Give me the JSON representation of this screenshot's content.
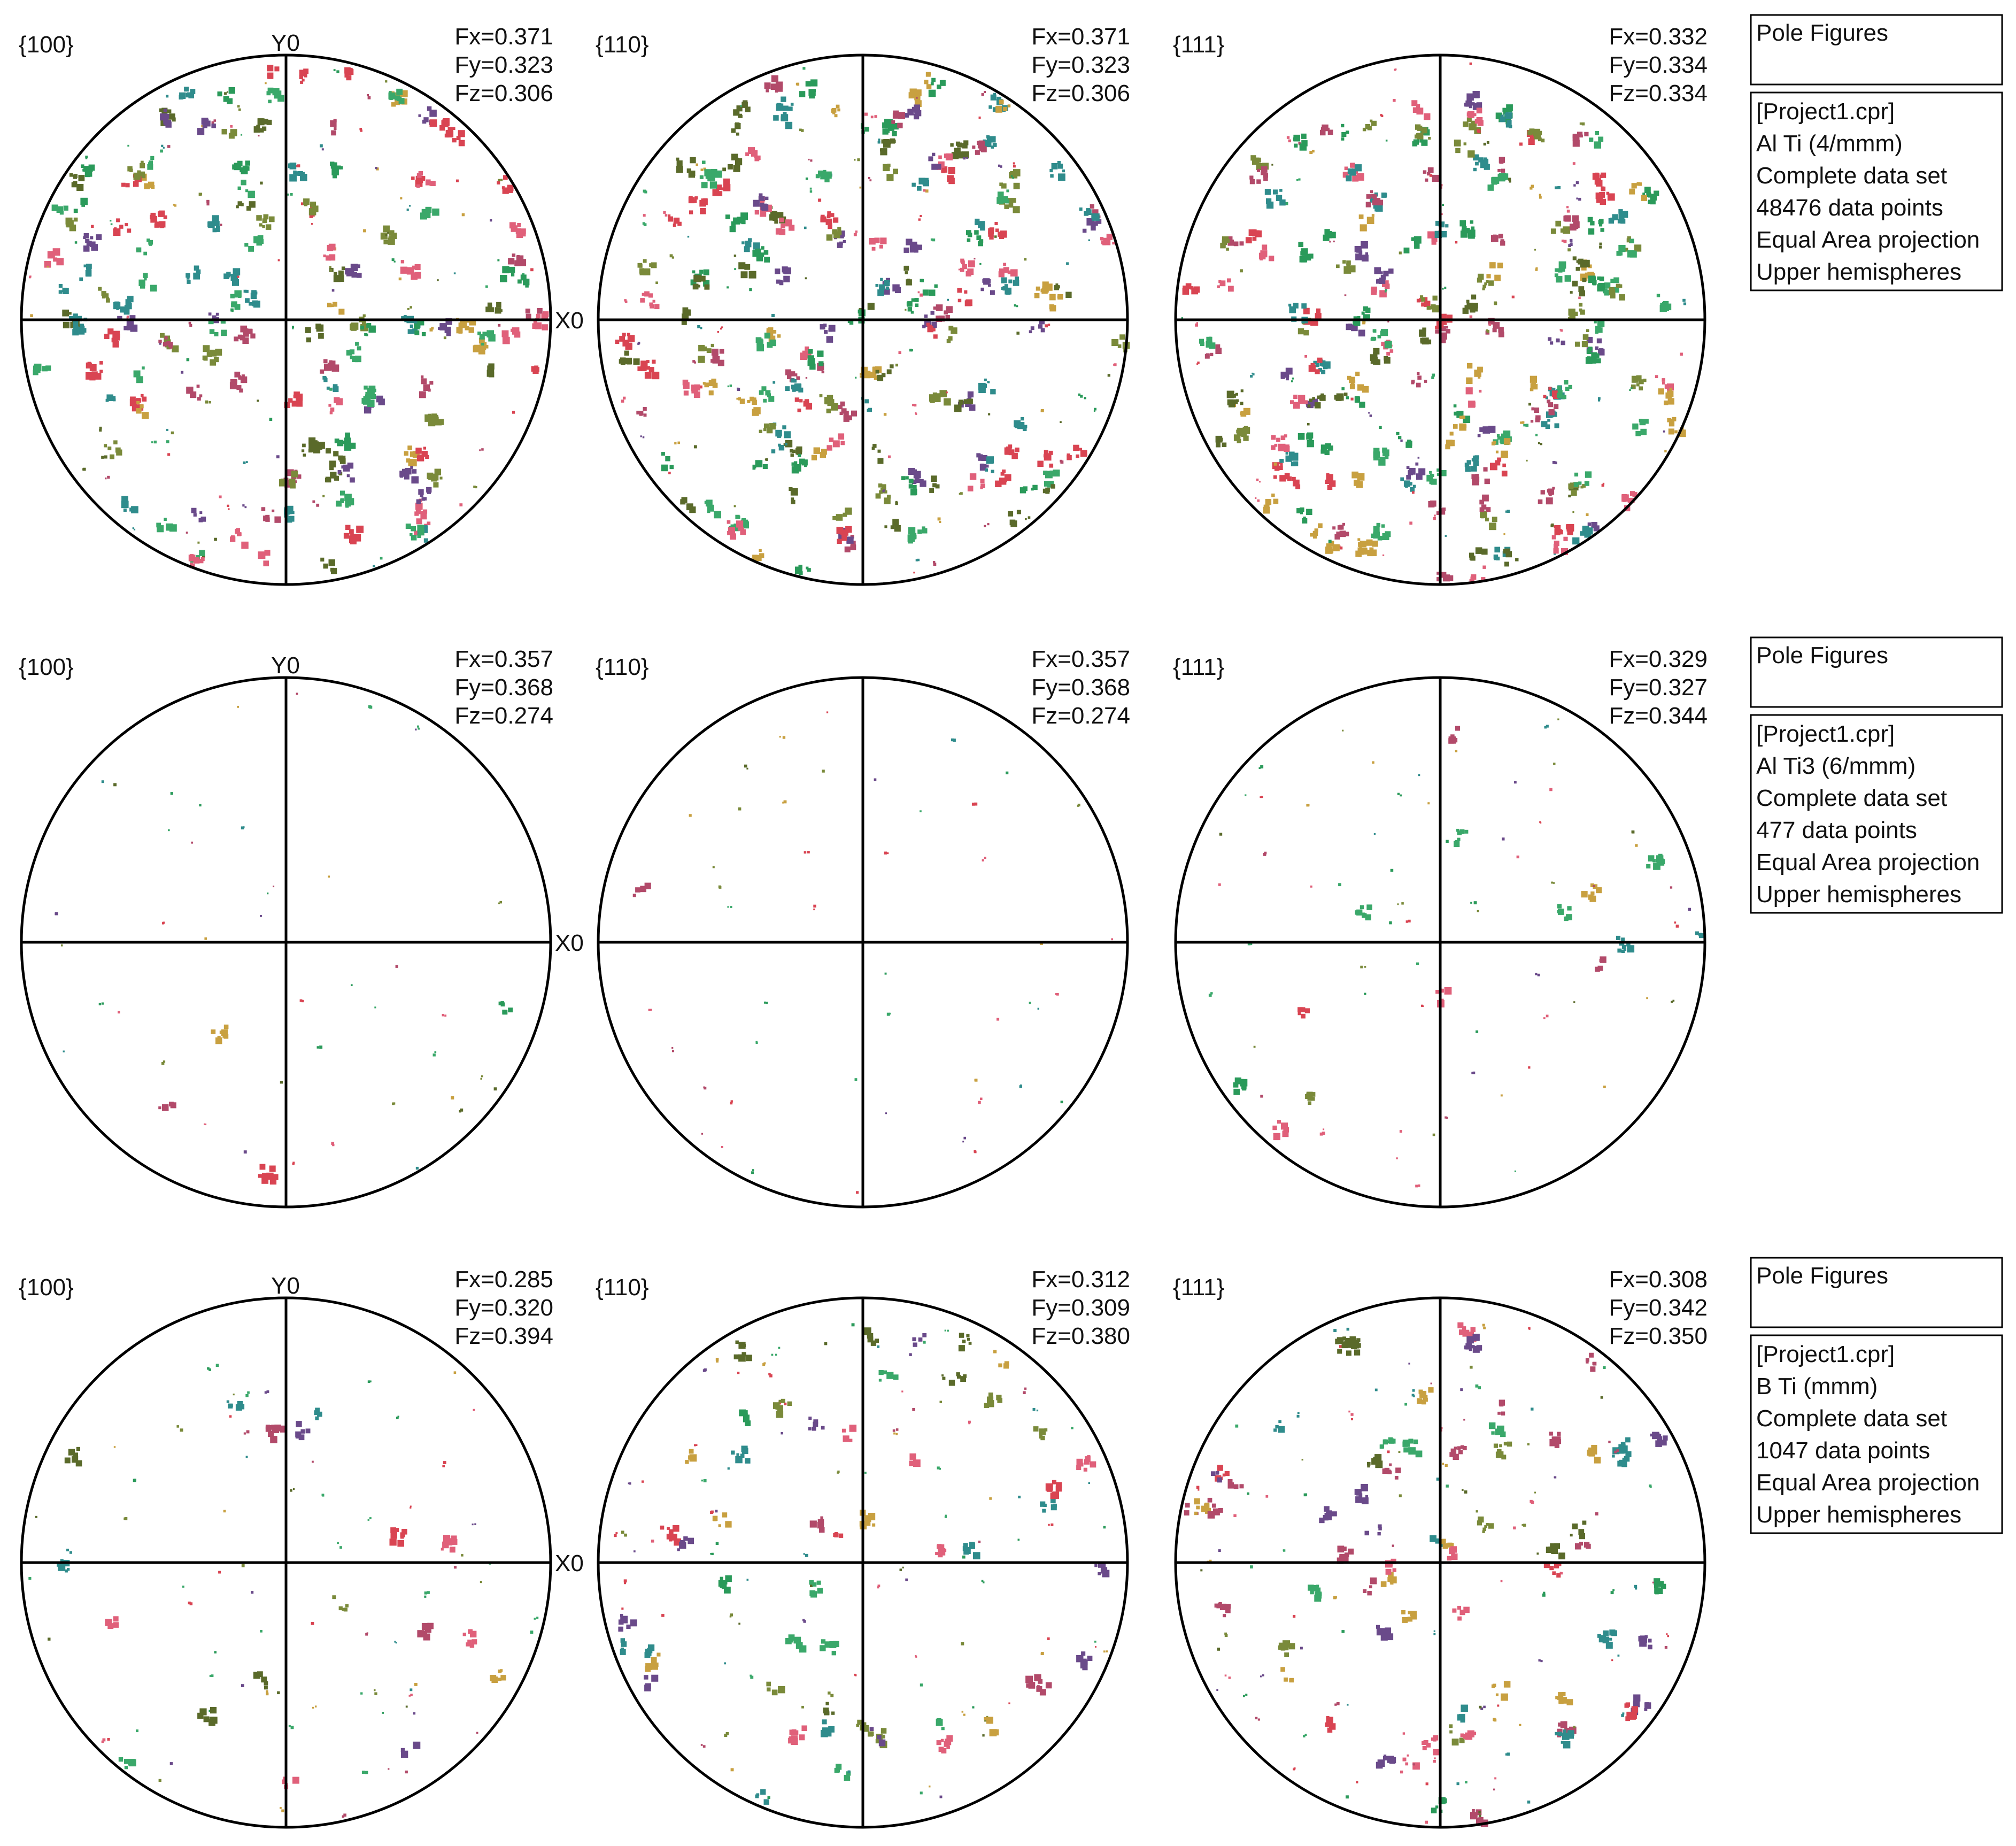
{
  "title": "Pole Figures",
  "axis_labels": {
    "y": "Y0",
    "x": "X0"
  },
  "colors": {
    "outline": "#000000",
    "background": "#ffffff",
    "palette": [
      "#d94452",
      "#3aa86a",
      "#7a8a3a",
      "#6a4a8a",
      "#c8a040",
      "#2f8c8c",
      "#b24a6a",
      "#5a6a2a",
      "#e0607a",
      "#2a9a5a"
    ]
  },
  "rows": [
    {
      "info_box": {
        "header": "Pole Figures",
        "lines": [
          "[Project1.cpr]",
          "Al Ti (4/mmm)",
          "Complete data set",
          "48476 data points",
          "Equal Area projection",
          "Upper hemispheres"
        ]
      },
      "figures": [
        {
          "plane": "{100}",
          "fx": "Fx=0.371",
          "fy": "Fy=0.323",
          "fz": "Fz=0.306"
        },
        {
          "plane": "{110}",
          "fx": "Fx=0.371",
          "fy": "Fy=0.323",
          "fz": "Fz=0.306"
        },
        {
          "plane": "{111}",
          "fx": "Fx=0.332",
          "fy": "Fy=0.334",
          "fz": "Fz=0.334"
        }
      ]
    },
    {
      "info_box": {
        "header": "Pole Figures",
        "lines": [
          "[Project1.cpr]",
          "Al Ti3 (6/mmm)",
          "Complete data set",
          "477 data points",
          "Equal Area projection",
          "Upper hemispheres"
        ]
      },
      "figures": [
        {
          "plane": "{100}",
          "fx": "Fx=0.357",
          "fy": "Fy=0.368",
          "fz": "Fz=0.274"
        },
        {
          "plane": "{110}",
          "fx": "Fx=0.357",
          "fy": "Fy=0.368",
          "fz": "Fz=0.274"
        },
        {
          "plane": "{111}",
          "fx": "Fx=0.329",
          "fy": "Fy=0.327",
          "fz": "Fz=0.344"
        }
      ]
    },
    {
      "info_box": {
        "header": "Pole Figures",
        "lines": [
          "[Project1.cpr]",
          "B Ti (mmm)",
          "Complete data set",
          "1047 data points",
          "Equal Area projection",
          "Upper hemispheres"
        ]
      },
      "figures": [
        {
          "plane": "{100}",
          "fx": "Fx=0.285",
          "fy": "Fy=0.320",
          "fz": "Fz=0.394"
        },
        {
          "plane": "{110}",
          "fx": "Fx=0.312",
          "fy": "Fy=0.309",
          "fz": "Fz=0.380"
        },
        {
          "plane": "{111}",
          "fx": "Fx=0.308",
          "fy": "Fy=0.342",
          "fz": "Fz=0.350"
        }
      ]
    }
  ],
  "chart_data": {
    "type": "scatter",
    "projection": "Equal Area projection",
    "hemisphere": "Upper hemispheres",
    "grid": false,
    "crosshair": true,
    "panels": [
      {
        "phase": "Al Ti (4/mmm)",
        "data_points": 48476,
        "planes": [
          "{100}",
          "{110}",
          "{111}"
        ],
        "fx": [
          0.371,
          0.371,
          0.332
        ],
        "fy": [
          0.323,
          0.323,
          0.334
        ],
        "fz": [
          0.306,
          0.306,
          0.334
        ]
      },
      {
        "phase": "Al Ti3 (6/mmm)",
        "data_points": 477,
        "planes": [
          "{100}",
          "{110}",
          "{111}"
        ],
        "fx": [
          0.357,
          0.357,
          0.329
        ],
        "fy": [
          0.368,
          0.368,
          0.327
        ],
        "fz": [
          0.274,
          0.274,
          0.344
        ]
      },
      {
        "phase": "B Ti (mmm)",
        "data_points": 1047,
        "planes": [
          "{100}",
          "{110}",
          "{111}"
        ],
        "fx": [
          0.285,
          0.312,
          0.308
        ],
        "fy": [
          0.32,
          0.309,
          0.342
        ],
        "fz": [
          0.394,
          0.38,
          0.35
        ]
      }
    ],
    "cluster_density": [
      [
        0.95,
        1.0,
        1.0
      ],
      [
        0.18,
        0.18,
        0.3
      ],
      [
        0.35,
        0.55,
        0.65
      ]
    ]
  }
}
